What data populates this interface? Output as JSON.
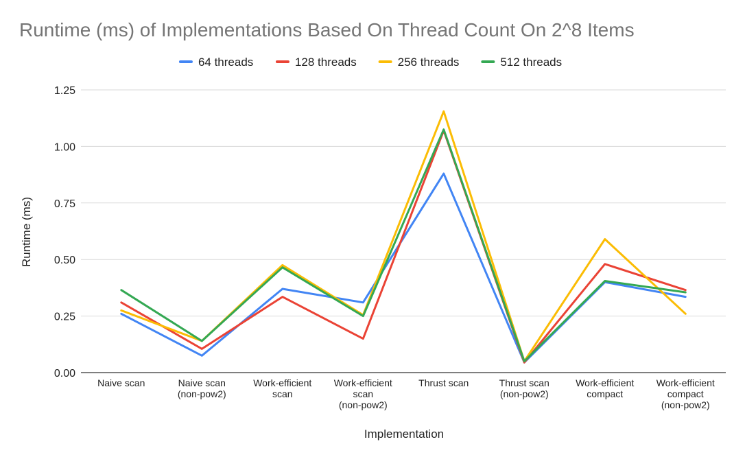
{
  "chart_data": {
    "type": "line",
    "title": "Runtime (ms) of Implementations Based On Thread Count On 2^8 Items",
    "xlabel": "Implementation",
    "ylabel": "Runtime (ms)",
    "ylim": [
      0,
      1.25
    ],
    "yticks": [
      "0.00",
      "0.25",
      "0.50",
      "0.75",
      "1.00",
      "1.25"
    ],
    "categories": [
      [
        "Naive scan"
      ],
      [
        "Naive scan",
        "(non-pow2)"
      ],
      [
        "Work-efficient",
        "scan"
      ],
      [
        "Work-efficient",
        "scan",
        "(non-pow2)"
      ],
      [
        "Thrust scan"
      ],
      [
        "Thrust scan",
        "(non-pow2)"
      ],
      [
        "Work-efficient",
        "compact"
      ],
      [
        "Work-efficient",
        "compact",
        "(non-pow2)"
      ]
    ],
    "grid": true,
    "legend_position": "top",
    "series": [
      {
        "name": "64 threads",
        "color": "#4285F4",
        "values": [
          0.26,
          0.075,
          0.37,
          0.31,
          0.88,
          0.045,
          0.4,
          0.335
        ]
      },
      {
        "name": "128 threads",
        "color": "#EA4335",
        "values": [
          0.31,
          0.105,
          0.335,
          0.15,
          1.07,
          0.045,
          0.48,
          0.365
        ]
      },
      {
        "name": "256 threads",
        "color": "#FBBC04",
        "values": [
          0.275,
          0.14,
          0.475,
          0.255,
          1.155,
          0.05,
          0.59,
          0.26
        ]
      },
      {
        "name": "512 threads",
        "color": "#34A853",
        "values": [
          0.365,
          0.14,
          0.465,
          0.25,
          1.075,
          0.05,
          0.405,
          0.355
        ]
      }
    ]
  }
}
